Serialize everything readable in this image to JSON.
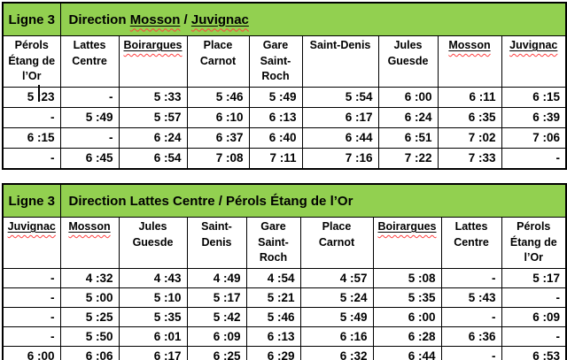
{
  "colors": {
    "header_green": "#92d050",
    "border": "#000000",
    "spellcheck_squiggle": "#ff4040"
  },
  "cursor": {
    "present_in_cell": "table 1, row 1, column 1"
  },
  "tables": [
    {
      "line_label": "Ligne 3",
      "direction_segments": [
        {
          "text": "Direction ",
          "flagged": false
        },
        {
          "text": "Mosson",
          "flagged": true
        },
        {
          "text": " / ",
          "flagged": false
        },
        {
          "text": "Juvignac",
          "flagged": true
        }
      ],
      "columns": [
        {
          "label": "Pérols Étang de l’Or",
          "flagged": false
        },
        {
          "label": "Lattes Centre",
          "flagged": false
        },
        {
          "label": "Boirargues",
          "flagged": true
        },
        {
          "label": "Place Carnot",
          "flagged": false
        },
        {
          "label": "Gare Saint-Roch",
          "flagged": false
        },
        {
          "label": "Saint-Denis",
          "flagged": false
        },
        {
          "label": "Jules Guesde",
          "flagged": false
        },
        {
          "label": "Mosson",
          "flagged": true
        },
        {
          "label": "Juvignac",
          "flagged": true
        }
      ],
      "rows": [
        [
          "5 :23",
          "-",
          "5 :33",
          "5 :46",
          "5 :49",
          "5 :54",
          "6 :00",
          "6 :11",
          "6 :15"
        ],
        [
          "-",
          "5 :49",
          "5 :57",
          "6 :10",
          "6 :13",
          "6 :17",
          "6 :24",
          "6 :35",
          "6 :39"
        ],
        [
          "6 :15",
          "-",
          "6 :24",
          "6 :37",
          "6 :40",
          "6 :44",
          "6 :51",
          "7 :02",
          "7 :06"
        ],
        [
          "-",
          "6 :45",
          "6 :54",
          "7 :08",
          "7 :11",
          "7 :16",
          "7 :22",
          "7 :33",
          "-"
        ]
      ]
    },
    {
      "line_label": "Ligne 3",
      "direction_segments": [
        {
          "text": "Direction Lattes Centre / Pérols Étang de l’Or",
          "flagged": false
        }
      ],
      "columns": [
        {
          "label": "Juvignac",
          "flagged": true
        },
        {
          "label": "Mosson",
          "flagged": true
        },
        {
          "label": "Jules Guesde",
          "flagged": false
        },
        {
          "label": "Saint-Denis",
          "flagged": false
        },
        {
          "label": "Gare Saint-Roch",
          "flagged": false
        },
        {
          "label": "Place Carnot",
          "flagged": false
        },
        {
          "label": "Boirargues",
          "flagged": true
        },
        {
          "label": "Lattes Centre",
          "flagged": false
        },
        {
          "label": "Pérols Étang de l’Or",
          "flagged": false
        }
      ],
      "rows": [
        [
          "-",
          "4 :32",
          "4 :43",
          "4 :49",
          "4 :54",
          "4 :57",
          "5 :08",
          "-",
          "5 :17"
        ],
        [
          "-",
          "5 :00",
          "5 :10",
          "5 :17",
          "5 :21",
          "5 :24",
          "5 :35",
          "5 :43",
          "-"
        ],
        [
          "-",
          "5 :25",
          "5 :35",
          "5 :42",
          "5 :46",
          "5 :49",
          "6 :00",
          "-",
          "6 :09"
        ],
        [
          "-",
          "5 :50",
          "6 :01",
          "6 :09",
          "6 :13",
          "6 :16",
          "6 :28",
          "6 :36",
          "-"
        ],
        [
          "6 :00",
          "6 :06",
          "6 :17",
          "6 :25",
          "6 :29",
          "6 :32",
          "6 :44",
          "-",
          "6 :53"
        ]
      ]
    }
  ]
}
